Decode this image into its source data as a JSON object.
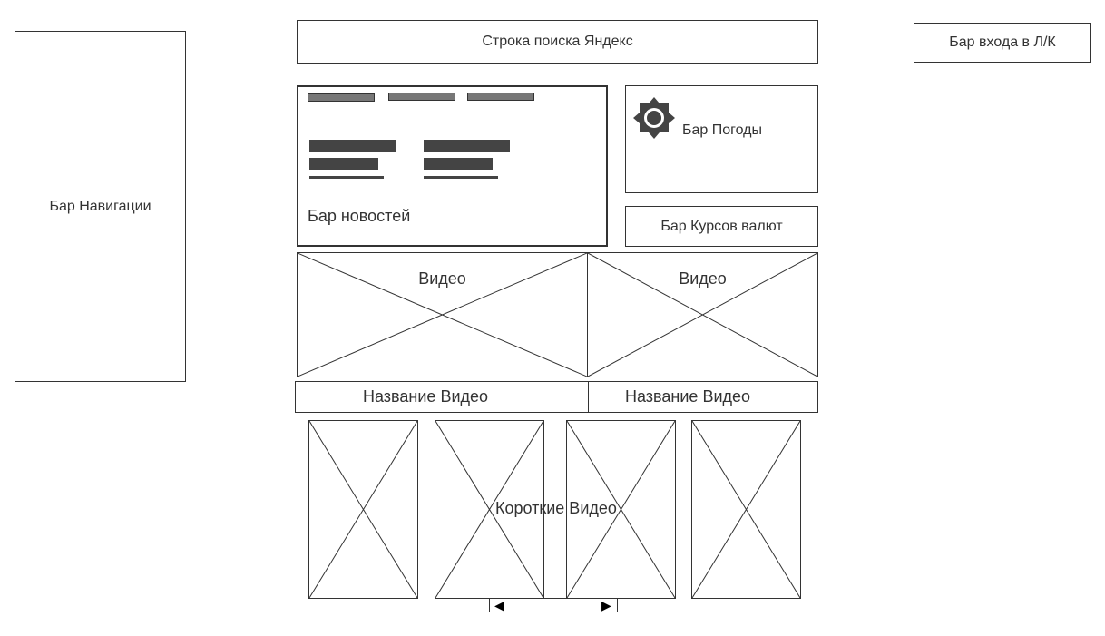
{
  "search": {
    "label": "Строка поиска Яндекс"
  },
  "login": {
    "label": "Бар входа в Л/К"
  },
  "navigation": {
    "label": "Бар Навигации"
  },
  "news": {
    "label": "Бар новостей"
  },
  "weather": {
    "label": "Бар Погоды",
    "icon": "gear-icon"
  },
  "currency": {
    "label": "Бар Курсов валют"
  },
  "videos": {
    "items": [
      {
        "label": "Видео",
        "title": "Название Видео"
      },
      {
        "label": "Видео",
        "title": "Название Видео"
      }
    ]
  },
  "shorts": {
    "label": "Короткие Видео",
    "prev": "◀",
    "next": "▶"
  }
}
